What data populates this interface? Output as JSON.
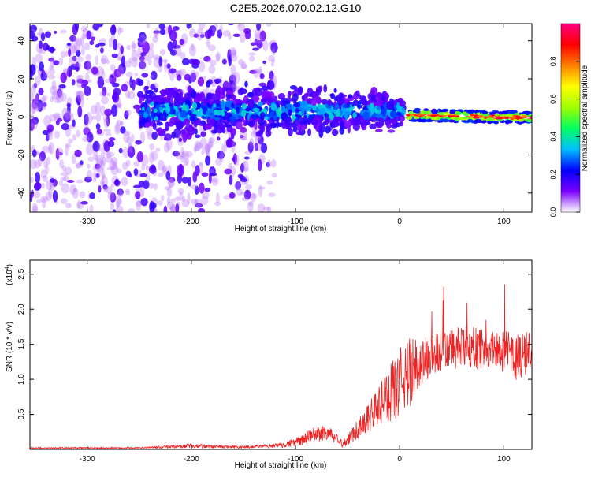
{
  "title": "C2E5.2026.070.02.12.G10",
  "chart_data": [
    {
      "type": "heatmap",
      "title": "C2E5.2026.070.02.12.G10",
      "xlabel": "Height of straight line (km)",
      "ylabel": "Frequency (Hz)",
      "xlim": [
        -355,
        127
      ],
      "ylim": [
        -50,
        49
      ],
      "xticks": [
        -300,
        -200,
        -100,
        0,
        100
      ],
      "yticks": [
        -40,
        -20,
        0,
        20,
        40
      ],
      "colorbar": {
        "label": "Normalized spectral amplitude",
        "range": [
          0,
          1
        ],
        "ticks": [
          "0.0",
          "0.2",
          "0.4",
          "0.6",
          "0.8"
        ],
        "colormap": [
          "#ffffff",
          "#7a00ff",
          "#0000ff",
          "#00c0ff",
          "#00ff60",
          "#a0ff00",
          "#ffff00",
          "#ff8000",
          "#ff0000",
          "#ff0080"
        ]
      },
      "description_regions": [
        {
          "x_range": [
            -355,
            -120
          ],
          "note": "scattered noise, purple"
        },
        {
          "x_range": [
            -250,
            0
          ],
          "center_freq": 4,
          "note": "broad blue band"
        },
        {
          "x_range": [
            10,
            127
          ],
          "center_freq": 0,
          "note": "narrow red/green line"
        }
      ]
    },
    {
      "type": "line",
      "xlabel": "Height of straight line (km)",
      "ylabel": "SNR (10 * v/v)",
      "scale_label": "(x10",
      "scale_exp": "4",
      "scale_close": ")",
      "xlim": [
        -355,
        127
      ],
      "ylim": [
        0,
        2.7
      ],
      "xticks": [
        -300,
        -200,
        -100,
        0,
        100
      ],
      "yticks": [
        "0.5",
        "1.0",
        "1.5",
        "2.0",
        "2.5"
      ],
      "color": "#ee2222",
      "envelope": {
        "x": [
          -355,
          -250,
          -200,
          -150,
          -120,
          -100,
          -80,
          -70,
          -55,
          -45,
          -30,
          -20,
          -10,
          0,
          10,
          20,
          40,
          60,
          80,
          100,
          110,
          120,
          127
        ],
        "mid": [
          0.02,
          0.02,
          0.05,
          0.03,
          0.05,
          0.1,
          0.22,
          0.25,
          0.08,
          0.22,
          0.45,
          0.62,
          0.78,
          0.95,
          1.1,
          1.25,
          1.4,
          1.45,
          1.45,
          1.4,
          1.3,
          1.35,
          1.45
        ],
        "amp": [
          0.01,
          0.01,
          0.03,
          0.02,
          0.03,
          0.06,
          0.12,
          0.12,
          0.05,
          0.12,
          0.22,
          0.3,
          0.4,
          0.5,
          0.5,
          0.35,
          0.3,
          0.3,
          0.3,
          0.3,
          0.35,
          0.35,
          0.3
        ]
      }
    }
  ]
}
